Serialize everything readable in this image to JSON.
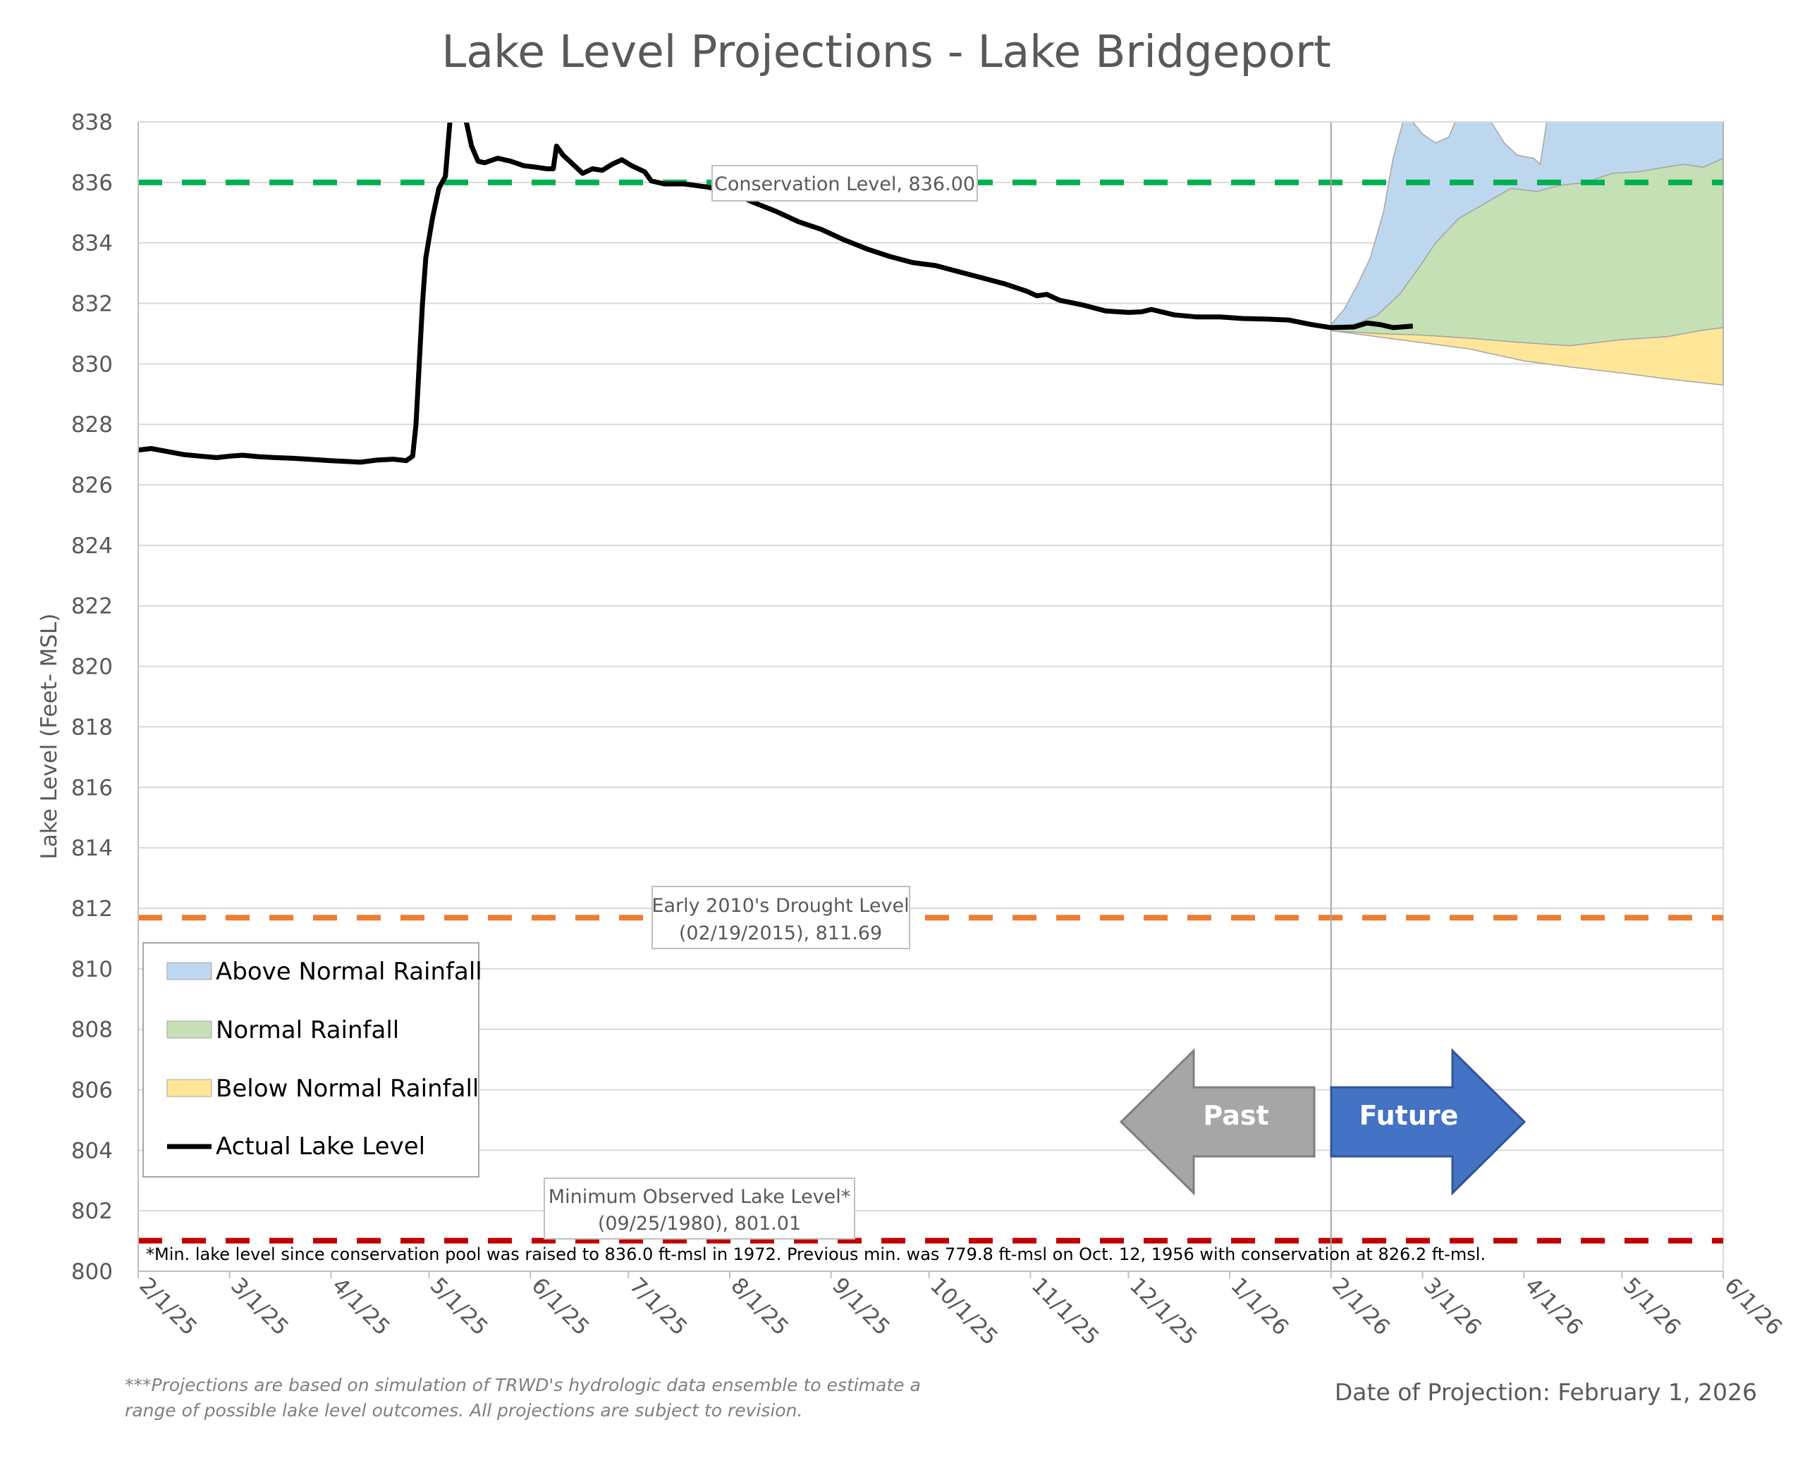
{
  "chart_data": {
    "type": "line",
    "title": "Lake Level Projections - Lake Bridgeport",
    "ylabel": "Lake Level (Feet- MSL)",
    "ylim": [
      800,
      838
    ],
    "yticks": [
      "800",
      "802",
      "804",
      "806",
      "808",
      "810",
      "812",
      "814",
      "816",
      "818",
      "820",
      "822",
      "824",
      "826",
      "828",
      "830",
      "832",
      "834",
      "836",
      "838"
    ],
    "xticks": [
      "2/1/25",
      "3/1/25",
      "4/1/25",
      "5/1/25",
      "6/1/25",
      "7/1/25",
      "8/1/25",
      "9/1/25",
      "10/1/25",
      "11/1/25",
      "12/1/25",
      "1/1/26",
      "2/1/26",
      "3/1/26",
      "4/1/26",
      "5/1/26",
      "6/1/26"
    ],
    "xlim": [
      "2025-02-01",
      "2026-06-01"
    ],
    "grid": true,
    "legend": {
      "placement": "left",
      "items": [
        {
          "label": "Above Normal Rainfall",
          "color": "#BDD7EE"
        },
        {
          "label": "Normal Rainfall",
          "color": "#C5E0B4"
        },
        {
          "label": "Below Normal Rainfall",
          "color": "#FFE699"
        },
        {
          "label": "Actual Lake Level",
          "color": "#000000"
        }
      ]
    },
    "reference_lines": [
      {
        "value": 836.0,
        "color": "#00B050",
        "label": "Conservation Level, 836.00"
      },
      {
        "value": 811.69,
        "color": "#ED7D31",
        "label_lines": [
          "Early 2010's Drought Level",
          "(02/19/2015), 811.69"
        ]
      },
      {
        "value": 801.01,
        "color": "#C00000",
        "label_lines": [
          "Minimum Observed Lake Level*",
          "(09/25/1980), 801.01"
        ]
      }
    ],
    "projection_start": "2026-02-01",
    "series": [
      {
        "name": "Actual Lake Level",
        "color": "#000000",
        "points": [
          [
            "2025-02-01",
            827.15
          ],
          [
            "2025-02-05",
            827.2
          ],
          [
            "2025-02-10",
            827.1
          ],
          [
            "2025-02-15",
            827.0
          ],
          [
            "2025-02-20",
            826.95
          ],
          [
            "2025-02-25",
            826.9
          ],
          [
            "2025-03-01",
            826.95
          ],
          [
            "2025-03-05",
            826.98
          ],
          [
            "2025-03-10",
            826.93
          ],
          [
            "2025-03-15",
            826.9
          ],
          [
            "2025-03-20",
            826.88
          ],
          [
            "2025-03-25",
            826.85
          ],
          [
            "2025-04-01",
            826.8
          ],
          [
            "2025-04-05",
            826.78
          ],
          [
            "2025-04-10",
            826.75
          ],
          [
            "2025-04-15",
            826.82
          ],
          [
            "2025-04-20",
            826.85
          ],
          [
            "2025-04-24",
            826.8
          ],
          [
            "2025-04-26",
            826.95
          ],
          [
            "2025-04-27",
            828.0
          ],
          [
            "2025-04-28",
            830.0
          ],
          [
            "2025-04-29",
            832.0
          ],
          [
            "2025-04-30",
            833.5
          ],
          [
            "2025-05-02",
            834.8
          ],
          [
            "2025-05-04",
            835.8
          ],
          [
            "2025-05-06",
            836.2
          ],
          [
            "2025-05-07",
            837.5
          ],
          [
            "2025-05-08",
            838.8
          ],
          [
            "2025-05-10",
            839.6
          ],
          [
            "2025-05-12",
            838.2
          ],
          [
            "2025-05-14",
            837.2
          ],
          [
            "2025-05-16",
            836.7
          ],
          [
            "2025-05-18",
            836.65
          ],
          [
            "2025-05-22",
            836.8
          ],
          [
            "2025-05-26",
            836.7
          ],
          [
            "2025-05-30",
            836.55
          ],
          [
            "2025-06-03",
            836.5
          ],
          [
            "2025-06-06",
            836.45
          ],
          [
            "2025-06-08",
            836.45
          ],
          [
            "2025-06-09",
            837.2
          ],
          [
            "2025-06-11",
            836.9
          ],
          [
            "2025-06-14",
            836.6
          ],
          [
            "2025-06-17",
            836.3
          ],
          [
            "2025-06-20",
            836.45
          ],
          [
            "2025-06-23",
            836.4
          ],
          [
            "2025-06-26",
            836.6
          ],
          [
            "2025-06-29",
            836.75
          ],
          [
            "2025-07-02",
            836.55
          ],
          [
            "2025-07-06",
            836.35
          ],
          [
            "2025-07-08",
            836.05
          ],
          [
            "2025-07-12",
            835.95
          ],
          [
            "2025-07-18",
            835.95
          ],
          [
            "2025-07-25",
            835.85
          ],
          [
            "2025-08-01",
            835.7
          ],
          [
            "2025-08-08",
            835.35
          ],
          [
            "2025-08-15",
            835.05
          ],
          [
            "2025-08-22",
            834.7
          ],
          [
            "2025-08-29",
            834.45
          ],
          [
            "2025-09-05",
            834.1
          ],
          [
            "2025-09-12",
            833.8
          ],
          [
            "2025-09-19",
            833.55
          ],
          [
            "2025-09-26",
            833.35
          ],
          [
            "2025-10-03",
            833.25
          ],
          [
            "2025-10-10",
            833.05
          ],
          [
            "2025-10-17",
            832.85
          ],
          [
            "2025-10-24",
            832.65
          ],
          [
            "2025-10-31",
            832.4
          ],
          [
            "2025-11-03",
            832.25
          ],
          [
            "2025-11-06",
            832.3
          ],
          [
            "2025-11-10",
            832.1
          ],
          [
            "2025-11-17",
            831.95
          ],
          [
            "2025-11-24",
            831.75
          ],
          [
            "2025-12-01",
            831.7
          ],
          [
            "2025-12-05",
            831.72
          ],
          [
            "2025-12-08",
            831.8
          ],
          [
            "2025-12-15",
            831.62
          ],
          [
            "2025-12-22",
            831.55
          ],
          [
            "2025-12-29",
            831.55
          ],
          [
            "2026-01-05",
            831.5
          ],
          [
            "2026-01-12",
            831.48
          ],
          [
            "2026-01-19",
            831.45
          ],
          [
            "2026-01-26",
            831.3
          ],
          [
            "2026-02-01",
            831.2
          ],
          [
            "2026-02-08",
            831.22
          ],
          [
            "2026-02-12",
            831.35
          ],
          [
            "2026-02-16",
            831.3
          ],
          [
            "2026-02-20",
            831.2
          ],
          [
            "2026-02-26",
            831.25
          ]
        ]
      },
      {
        "name": "Above Normal Rainfall",
        "color": "#BDD7EE",
        "upper": [
          [
            "2026-02-01",
            831.3
          ],
          [
            "2026-02-05",
            831.8
          ],
          [
            "2026-02-09",
            832.6
          ],
          [
            "2026-02-13",
            833.5
          ],
          [
            "2026-02-17",
            835.0
          ],
          [
            "2026-02-20",
            836.8
          ],
          [
            "2026-02-23",
            838.0
          ],
          [
            "2026-02-26",
            838.0
          ],
          [
            "2026-03-01",
            837.6
          ],
          [
            "2026-03-05",
            837.3
          ],
          [
            "2026-03-09",
            837.5
          ],
          [
            "2026-03-11",
            838.0
          ],
          [
            "2026-03-22",
            838.0
          ],
          [
            "2026-03-26",
            837.3
          ],
          [
            "2026-03-30",
            836.9
          ],
          [
            "2026-04-04",
            836.8
          ],
          [
            "2026-04-06",
            836.6
          ],
          [
            "2026-04-08",
            838.0
          ],
          [
            "2026-06-01",
            838.0
          ]
        ]
      },
      {
        "name": "Normal Rainfall",
        "color": "#C5E0B4",
        "upper": [
          [
            "2026-02-01",
            831.2
          ],
          [
            "2026-02-08",
            831.3
          ],
          [
            "2026-02-15",
            831.6
          ],
          [
            "2026-02-22",
            832.3
          ],
          [
            "2026-02-28",
            833.2
          ],
          [
            "2026-03-05",
            834.0
          ],
          [
            "2026-03-12",
            834.8
          ],
          [
            "2026-03-20",
            835.3
          ],
          [
            "2026-03-28",
            835.8
          ],
          [
            "2026-04-05",
            835.7
          ],
          [
            "2026-04-12",
            835.9
          ],
          [
            "2026-04-20",
            836.0
          ],
          [
            "2026-04-28",
            836.3
          ],
          [
            "2026-05-06",
            836.35
          ],
          [
            "2026-05-14",
            836.5
          ],
          [
            "2026-05-20",
            836.6
          ],
          [
            "2026-05-26",
            836.5
          ],
          [
            "2026-06-01",
            836.8
          ]
        ],
        "lower": [
          [
            "2026-02-01",
            831.1
          ],
          [
            "2026-02-15",
            831.0
          ],
          [
            "2026-03-01",
            830.95
          ],
          [
            "2026-03-15",
            830.85
          ],
          [
            "2026-04-01",
            830.7
          ],
          [
            "2026-04-15",
            830.6
          ],
          [
            "2026-05-01",
            830.8
          ],
          [
            "2026-05-15",
            830.9
          ],
          [
            "2026-05-25",
            831.1
          ],
          [
            "2026-06-01",
            831.2
          ]
        ]
      },
      {
        "name": "Below Normal Rainfall",
        "color": "#FFE699",
        "lower": [
          [
            "2026-02-01",
            831.1
          ],
          [
            "2026-02-15",
            830.9
          ],
          [
            "2026-03-01",
            830.7
          ],
          [
            "2026-03-15",
            830.5
          ],
          [
            "2026-04-01",
            830.1
          ],
          [
            "2026-04-15",
            829.9
          ],
          [
            "2026-05-01",
            829.7
          ],
          [
            "2026-05-15",
            829.5
          ],
          [
            "2026-06-01",
            829.3
          ]
        ]
      }
    ],
    "annotations": {
      "past": "Past",
      "future": "Future",
      "note": "*Min. lake level since conservation pool was raised to 836.0 ft-msl in 1972.  Previous min. was 779.8 ft-msl on Oct. 12, 1956 with conservation at 826.2 ft-msl.",
      "footnote_lines": [
        "***Projections are based on simulation of TRWD's hydrologic data ensemble to estimate a",
        "range of possible lake level outcomes.  All projections are subject to revision."
      ],
      "date_of_projection": "Date of Projection: February 1, 2026"
    }
  }
}
